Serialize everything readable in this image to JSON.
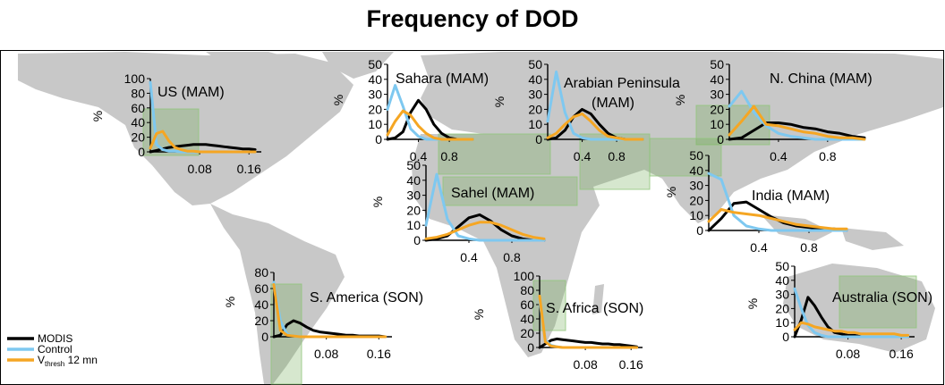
{
  "title": "Frequency of DOD",
  "legend": {
    "entries": [
      {
        "key": "modis",
        "label": "MODIS",
        "color": "#000000"
      },
      {
        "key": "control",
        "label": "Control",
        "color": "#7ec8f0"
      },
      {
        "key": "vthresh",
        "label_main": "V",
        "label_sub": "thresh",
        "label_tail": " 12 mn",
        "color": "#f5a623"
      }
    ]
  },
  "chart_data": [
    {
      "type": "line",
      "title": "US (MAM)",
      "ylabel": "%",
      "ylim": [
        0,
        100
      ],
      "yticks": [
        0,
        20,
        40,
        60,
        80,
        100
      ],
      "xlim": [
        0,
        0.18
      ],
      "xticks": [
        0.08,
        0.16
      ],
      "x": [
        0,
        0.01,
        0.02,
        0.03,
        0.04,
        0.05,
        0.06,
        0.07,
        0.08,
        0.09,
        0.1,
        0.11,
        0.12,
        0.13,
        0.14,
        0.15,
        0.16,
        0.17
      ],
      "series": [
        {
          "key": "modis",
          "values": [
            0,
            2,
            4,
            6,
            7,
            8,
            9,
            10,
            10,
            10,
            9,
            8,
            7,
            6,
            5,
            4,
            4,
            3
          ]
        },
        {
          "key": "control",
          "values": [
            95,
            10,
            3,
            1,
            1,
            0,
            0,
            0,
            0,
            0,
            0,
            0,
            0,
            0,
            0,
            0,
            0,
            0
          ]
        },
        {
          "key": "vthresh",
          "values": [
            5,
            25,
            28,
            15,
            6,
            3,
            1,
            1,
            0,
            0,
            0,
            0,
            0,
            0,
            0,
            0,
            0,
            0
          ]
        }
      ]
    },
    {
      "type": "line",
      "title": "Sahara (MAM)",
      "ylabel": "%",
      "ylim": [
        0,
        50
      ],
      "yticks": [
        0,
        10,
        20,
        30,
        40,
        50
      ],
      "xlim": [
        0,
        1.1
      ],
      "xticks": [
        0.4,
        0.8
      ],
      "x": [
        0,
        0.1,
        0.2,
        0.3,
        0.4,
        0.5,
        0.6,
        0.7,
        0.8,
        0.9,
        1.0,
        1.1
      ],
      "series": [
        {
          "key": "modis",
          "values": [
            0,
            1,
            5,
            18,
            26,
            20,
            10,
            4,
            1,
            0,
            0,
            0
          ]
        },
        {
          "key": "control",
          "values": [
            20,
            36,
            22,
            7,
            2,
            0,
            0,
            0,
            0,
            0,
            0,
            0
          ]
        },
        {
          "key": "vthresh",
          "values": [
            3,
            12,
            19,
            16,
            9,
            4,
            1,
            0,
            0,
            0,
            0,
            0
          ]
        }
      ]
    },
    {
      "type": "line",
      "title": "Arabian Peninsula (MAM)",
      "ylabel": "%",
      "ylim": [
        0,
        50
      ],
      "yticks": [
        0,
        10,
        20,
        30,
        40,
        50
      ],
      "xlim": [
        0,
        1.1
      ],
      "xticks": [
        0.4,
        0.8
      ],
      "x": [
        0,
        0.1,
        0.2,
        0.3,
        0.4,
        0.5,
        0.6,
        0.7,
        0.8,
        0.9,
        1.0,
        1.1
      ],
      "series": [
        {
          "key": "modis",
          "values": [
            0,
            1,
            6,
            15,
            20,
            17,
            10,
            4,
            1,
            0,
            0,
            0
          ]
        },
        {
          "key": "control",
          "values": [
            12,
            45,
            18,
            4,
            1,
            0,
            0,
            0,
            0,
            0,
            0,
            0
          ]
        },
        {
          "key": "vthresh",
          "values": [
            1,
            4,
            10,
            15,
            17,
            12,
            6,
            2,
            1,
            0,
            0,
            0
          ]
        }
      ]
    },
    {
      "type": "line",
      "title": "N. China (MAM)",
      "ylabel": "%",
      "ylim": [
        0,
        50
      ],
      "yticks": [
        0,
        10,
        20,
        30,
        40,
        50
      ],
      "xlim": [
        0,
        1.1
      ],
      "xticks": [
        0.4,
        0.8
      ],
      "x": [
        0,
        0.1,
        0.2,
        0.3,
        0.4,
        0.5,
        0.6,
        0.7,
        0.8,
        0.9,
        1.0,
        1.1
      ],
      "series": [
        {
          "key": "modis",
          "values": [
            0,
            1,
            6,
            11,
            11,
            10,
            8,
            7,
            5,
            4,
            2,
            1
          ]
        },
        {
          "key": "control",
          "values": [
            22,
            32,
            18,
            9,
            4,
            2,
            1,
            0,
            0,
            0,
            0,
            0
          ]
        },
        {
          "key": "vthresh",
          "values": [
            3,
            12,
            22,
            10,
            9,
            7,
            5,
            4,
            2,
            1,
            1,
            0
          ]
        }
      ]
    },
    {
      "type": "line",
      "title": "Sahel (MAM)",
      "ylabel": "%",
      "ylim": [
        0,
        50
      ],
      "yticks": [
        0,
        10,
        20,
        30,
        40,
        50
      ],
      "xlim": [
        0,
        1.1
      ],
      "xticks": [
        0.4,
        0.8
      ],
      "x": [
        0,
        0.1,
        0.2,
        0.3,
        0.4,
        0.5,
        0.6,
        0.7,
        0.8,
        0.9,
        1.0,
        1.1
      ],
      "series": [
        {
          "key": "modis",
          "values": [
            0,
            1,
            3,
            9,
            15,
            17,
            13,
            7,
            3,
            1,
            0,
            0
          ]
        },
        {
          "key": "control",
          "values": [
            10,
            44,
            14,
            3,
            1,
            0,
            0,
            0,
            0,
            0,
            0,
            0
          ]
        },
        {
          "key": "vthresh",
          "values": [
            1,
            2,
            4,
            7,
            10,
            12,
            12,
            10,
            7,
            4,
            2,
            1
          ]
        }
      ]
    },
    {
      "type": "line",
      "title": "India (MAM)",
      "ylabel": "%",
      "ylim": [
        0,
        50
      ],
      "yticks": [
        0,
        10,
        20,
        30,
        40,
        50
      ],
      "xlim": [
        0,
        1.1
      ],
      "xticks": [
        0.4,
        0.8
      ],
      "x": [
        0,
        0.1,
        0.2,
        0.3,
        0.4,
        0.5,
        0.6,
        0.7,
        0.8,
        0.9,
        1.0,
        1.1
      ],
      "series": [
        {
          "key": "modis",
          "values": [
            0,
            8,
            18,
            19,
            14,
            9,
            5,
            3,
            2,
            1,
            1,
            0
          ]
        },
        {
          "key": "control",
          "values": [
            38,
            34,
            10,
            3,
            1,
            0,
            0,
            0,
            0,
            0,
            0,
            0
          ]
        },
        {
          "key": "vthresh",
          "values": [
            6,
            14,
            12,
            11,
            10,
            8,
            6,
            4,
            3,
            2,
            1,
            1
          ]
        }
      ]
    },
    {
      "type": "line",
      "title": "S. America (SON)",
      "ylabel": "%",
      "ylim": [
        0,
        80
      ],
      "yticks": [
        0,
        20,
        40,
        60,
        80
      ],
      "xlim": [
        0,
        0.18
      ],
      "xticks": [
        0.08,
        0.16
      ],
      "x": [
        0,
        0.01,
        0.02,
        0.03,
        0.04,
        0.05,
        0.06,
        0.07,
        0.08,
        0.09,
        0.1,
        0.11,
        0.12,
        0.13,
        0.14,
        0.15,
        0.16,
        0.17
      ],
      "series": [
        {
          "key": "modis",
          "values": [
            0,
            2,
            15,
            20,
            17,
            12,
            8,
            6,
            5,
            4,
            3,
            2,
            2,
            1,
            1,
            1,
            1,
            0
          ]
        },
        {
          "key": "control",
          "values": [
            68,
            20,
            3,
            1,
            0,
            0,
            0,
            0,
            0,
            0,
            0,
            0,
            0,
            0,
            0,
            0,
            0,
            0
          ]
        },
        {
          "key": "vthresh",
          "values": [
            65,
            8,
            2,
            1,
            0,
            0,
            0,
            0,
            0,
            0,
            0,
            0,
            0,
            0,
            0,
            0,
            0,
            0
          ]
        }
      ]
    },
    {
      "type": "line",
      "title": "S. Africa (SON)",
      "ylabel": "%",
      "ylim": [
        0,
        100
      ],
      "yticks": [
        0,
        20,
        40,
        60,
        80,
        100
      ],
      "xlim": [
        0,
        0.18
      ],
      "xticks": [
        0.08,
        0.16
      ],
      "x": [
        0,
        0.01,
        0.02,
        0.03,
        0.04,
        0.05,
        0.06,
        0.07,
        0.08,
        0.09,
        0.1,
        0.11,
        0.12,
        0.13,
        0.14,
        0.15,
        0.16,
        0.17
      ],
      "series": [
        {
          "key": "modis",
          "values": [
            0,
            5,
            10,
            12,
            11,
            10,
            9,
            8,
            7,
            7,
            6,
            5,
            5,
            4,
            4,
            3,
            2,
            1
          ]
        },
        {
          "key": "control",
          "values": [
            65,
            10,
            3,
            1,
            0,
            0,
            0,
            0,
            0,
            0,
            0,
            0,
            0,
            0,
            0,
            0,
            0,
            0
          ]
        },
        {
          "key": "vthresh",
          "values": [
            72,
            8,
            2,
            1,
            0,
            0,
            0,
            0,
            0,
            0,
            0,
            0,
            0,
            0,
            0,
            0,
            0,
            0
          ]
        }
      ]
    },
    {
      "type": "line",
      "title": "Australia (SON)",
      "ylabel": "%",
      "ylim": [
        0,
        50
      ],
      "yticks": [
        0,
        10,
        20,
        30,
        40,
        50
      ],
      "xlim": [
        0,
        0.18
      ],
      "xticks": [
        0.08,
        0.16
      ],
      "x": [
        0,
        0.01,
        0.02,
        0.03,
        0.04,
        0.05,
        0.06,
        0.07,
        0.08,
        0.09,
        0.1,
        0.11,
        0.12,
        0.13,
        0.14,
        0.15,
        0.16,
        0.17
      ],
      "series": [
        {
          "key": "modis",
          "values": [
            0,
            12,
            28,
            22,
            14,
            7,
            3,
            2,
            1,
            1,
            0,
            0,
            0,
            0,
            0,
            0,
            0,
            0
          ]
        },
        {
          "key": "control",
          "values": [
            34,
            20,
            8,
            3,
            1,
            0,
            0,
            0,
            0,
            0,
            0,
            0,
            0,
            0,
            0,
            0,
            0,
            0
          ]
        },
        {
          "key": "vthresh",
          "values": [
            5,
            10,
            9,
            7,
            6,
            5,
            4,
            4,
            3,
            3,
            2,
            2,
            2,
            2,
            2,
            2,
            1,
            1
          ]
        }
      ]
    }
  ]
}
